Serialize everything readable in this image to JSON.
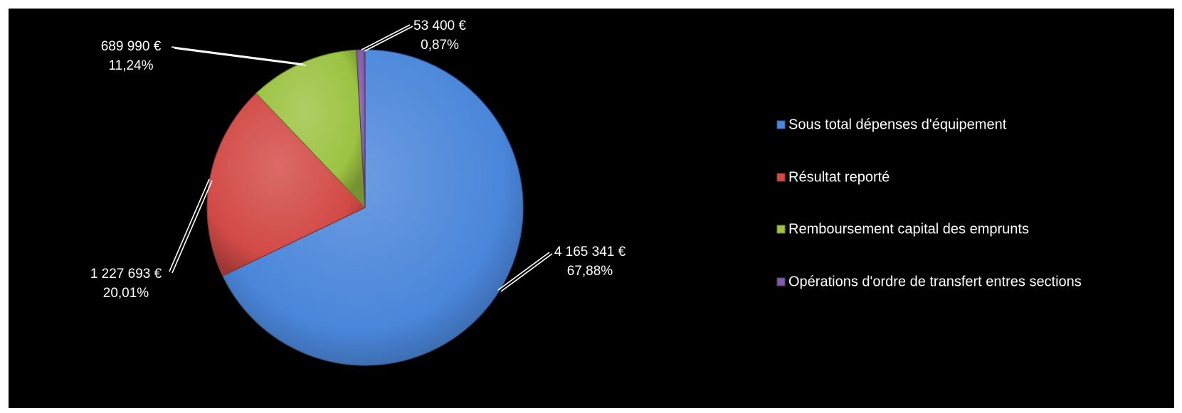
{
  "chart_data": {
    "type": "pie",
    "title": "",
    "legend_position": "right",
    "start": "top, clockwise",
    "slices": [
      {
        "name": "Sous total dépenses d'équipement",
        "value": 4165341,
        "value_label": "4 165 341 €",
        "percent_label": "67,88%",
        "color": "#4A86DA"
      },
      {
        "name": "Résultat reporté",
        "value": 1227693,
        "value_label": "1 227 693 €",
        "percent_label": "20,01%",
        "color": "#D24A46"
      },
      {
        "name": "Remboursement capital des emprunts",
        "value": 689990,
        "value_label": "689 990 €",
        "percent_label": "11,24%",
        "color": "#9CC342"
      },
      {
        "name": "Opérations d'ordre de transfert entres sections",
        "value": 53400,
        "value_label": "53 400 €",
        "percent_label": "0,87%",
        "color": "#7F5AA8"
      }
    ]
  },
  "colors": {
    "background": "#000000",
    "label_text": "#ffffff",
    "leader_line": "#ffffff"
  }
}
